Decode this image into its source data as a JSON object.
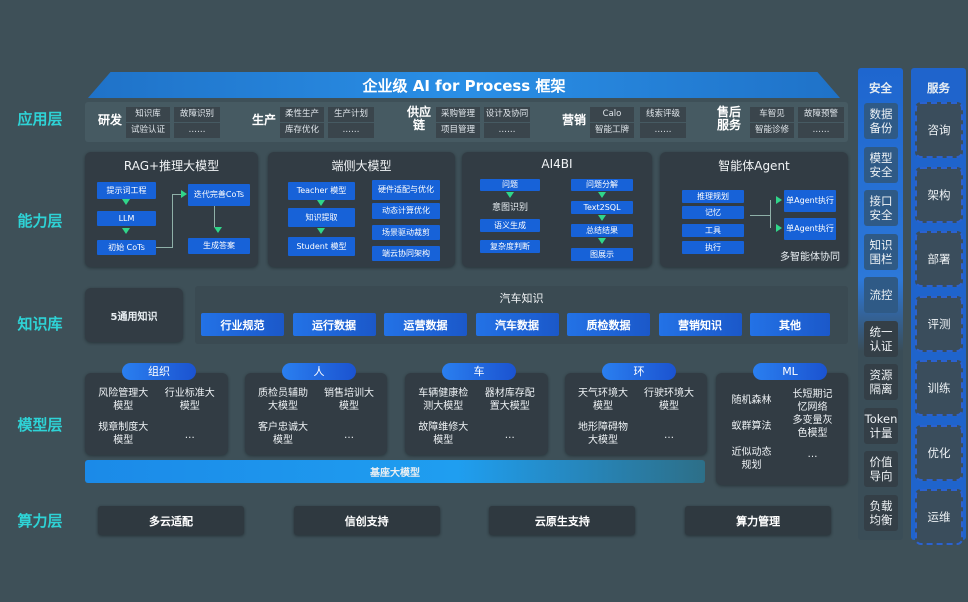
{
  "title": "企业级 AI for Process 框架",
  "layers": {
    "app": "应用层",
    "capability": "能力层",
    "knowledge": "知识库",
    "model": "模型层",
    "compute": "算力层"
  },
  "app_layer": [
    {
      "category": "研发",
      "cells": [
        [
          "知识库",
          "试验认证"
        ],
        [
          "故障识别",
          "……"
        ]
      ]
    },
    {
      "category": "生产",
      "cells": [
        [
          "柔性生产",
          "库存优化"
        ],
        [
          "生产计划",
          "……"
        ]
      ]
    },
    {
      "category": "供应链",
      "cells": [
        [
          "采购管理",
          "项目管理"
        ],
        [
          "设计及协同",
          "……"
        ]
      ]
    },
    {
      "category": "营销",
      "cells": [
        [
          "Calo",
          "智能工牌"
        ],
        [
          "线索评级",
          "……"
        ]
      ]
    },
    {
      "category": "售后服务",
      "cells": [
        [
          "车智见",
          "智能诊修"
        ],
        [
          "故障预警",
          "……"
        ]
      ]
    }
  ],
  "capability": [
    {
      "title": "RAG+推理大模型",
      "boxes": [
        "提示词工程",
        "LLM",
        "初始 CoTs",
        "迭代完善CoTs",
        "生成答案"
      ]
    },
    {
      "title": "端侧大模型",
      "boxes": [
        "Teacher 模型",
        "知识提取",
        "Student 模型",
        "硬件适配与优化",
        "动态计算优化",
        "场景驱动裁剪",
        "端云协同架构"
      ]
    },
    {
      "title": "AI4BI",
      "boxes": [
        "问题",
        "语义生成",
        "复杂度判断",
        "问题分解",
        "Text2SQL",
        "总结结果",
        "图展示"
      ],
      "text": "意图识别"
    },
    {
      "title": "智能体Agent",
      "boxes": [
        "推理规划",
        "记忆",
        "工具",
        "执行",
        "单Agent执行",
        "单Agent执行"
      ],
      "text": "多智能体协同"
    }
  ],
  "knowledge": {
    "general": "5通用知识",
    "auto_title": "汽车知识",
    "items": [
      "行业规范",
      "运行数据",
      "运营数据",
      "汽车数据",
      "质检数据",
      "营销知识",
      "其他"
    ]
  },
  "models": [
    {
      "group": "组织",
      "items": [
        "风险管理大模型",
        "行业标准大模型",
        "规章制度大模型",
        "…"
      ]
    },
    {
      "group": "人",
      "items": [
        "质检员辅助大模型",
        "销售培训大模型",
        "客户忠诚大模型",
        "…"
      ]
    },
    {
      "group": "车",
      "items": [
        "车辆健康检测大模型",
        "器材库存配置大模型",
        "故障维修大模型",
        "…"
      ]
    },
    {
      "group": "环",
      "items": [
        "天气环境大模型",
        "行驶环境大模型",
        "地形障碍物大模型",
        "…"
      ]
    },
    {
      "group": "ML",
      "items": [
        "随机森林",
        "长短期记忆网络",
        "蚁群算法",
        "多变量灰色模型",
        "近似动态规划",
        "…"
      ]
    }
  ],
  "base_model": "基座大模型",
  "compute": [
    "多云适配",
    "信创支持",
    "云原生支持",
    "算力管理"
  ],
  "security": {
    "title": "安全",
    "items": [
      "数据备份",
      "模型安全",
      "接口安全",
      "知识围栏",
      "流控",
      "统一认证",
      "资源隔离",
      "Token计量",
      "价值导向",
      "负载均衡"
    ]
  },
  "services": {
    "title": "服务",
    "items": [
      "咨询",
      "架构",
      "部署",
      "评测",
      "训练",
      "优化",
      "运维"
    ]
  },
  "colors": {
    "accent": "#1762d8",
    "label": "#2ed3d6",
    "background": "#3e5058",
    "arrow": "#30d68a"
  }
}
